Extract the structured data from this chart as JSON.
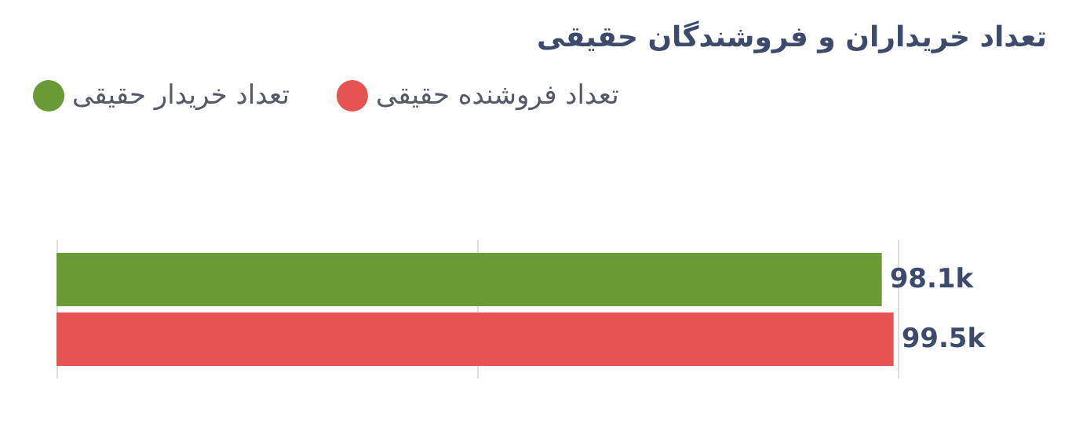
{
  "chart_data": {
    "type": "bar",
    "orientation": "horizontal",
    "title": "تعداد خریداران و فروشندگان حقیقی",
    "categories": [
      null
    ],
    "series": [
      {
        "name": "تعداد خریدار حقیقی",
        "color": "#6a9a35",
        "values": [
          98100
        ],
        "value_labels": [
          "98.1k"
        ]
      },
      {
        "name": "تعداد فروشنده حقیقی",
        "color": "#e55353",
        "values": [
          99500
        ],
        "value_labels": [
          "99.5k"
        ]
      }
    ],
    "xlim": [
      0,
      100000
    ],
    "xticks": [
      {
        "value": 0,
        "label": null
      },
      {
        "value": 50000,
        "label": null
      },
      {
        "value": 100000,
        "label": null
      }
    ],
    "grid": "x",
    "legend": "top left"
  }
}
